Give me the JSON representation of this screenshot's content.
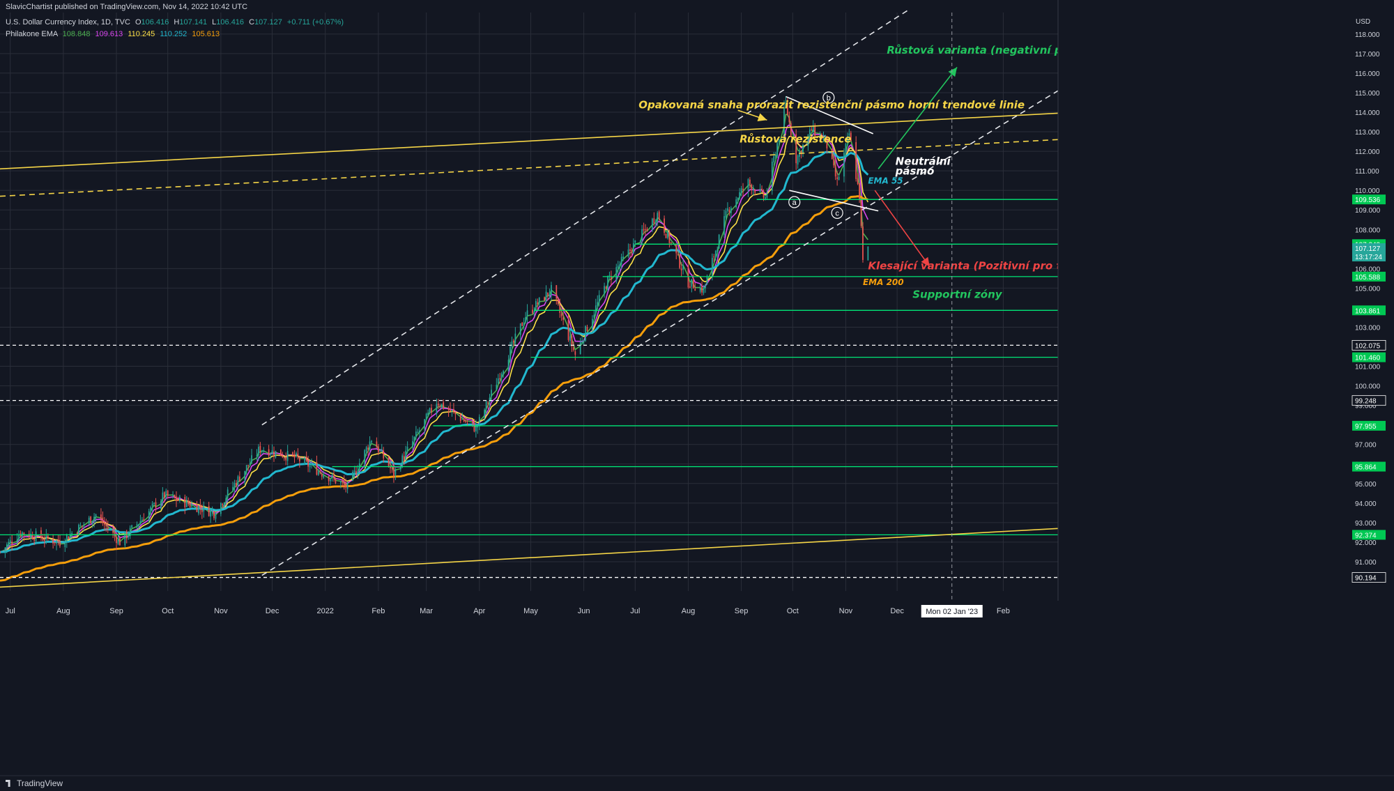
{
  "header": {
    "publisher_line": "SlavicChartist published on TradingView.com, Nov 14, 2022 10:42 UTC",
    "symbol_line": "U.S. Dollar Currency Index, 1D, TVC",
    "ohlc": {
      "open_label": "O",
      "open": "106.416",
      "high_label": "H",
      "high": "107.141",
      "low_label": "L",
      "low": "106.416",
      "close_label": "C",
      "close": "107.127",
      "change": "+0.711 (+0.67%)"
    },
    "indicator": {
      "name": "Philakone EMA",
      "values": [
        "108.848",
        "109.613",
        "110.245",
        "110.252",
        "105.613"
      ]
    }
  },
  "footer": {
    "brand": "TradingView"
  },
  "colors": {
    "background": "#131722",
    "grid": "#2a2e39",
    "text": "#d1d4dc",
    "candle_up": "#26a69a",
    "candle_down": "#ef5350",
    "green_lines": "#00e676",
    "yellow": "#f5d547",
    "annotation_green": "#22c55e",
    "annotation_red": "#ef4444",
    "ema_fast1": "#4caf50",
    "ema_fast2": "#d946ef",
    "ema_fast3": "#fde047",
    "ema55": "#22b8cf",
    "ema200": "#f59e0b",
    "white_dashed": "#e5e7eb"
  },
  "chart_data": {
    "type": "candlestick",
    "symbol": "U.S. Dollar Currency Index",
    "timeframe": "1D",
    "exchange": "TVC",
    "currency": "USD",
    "x_range": [
      "2021-06-25",
      "2023-03-05"
    ],
    "ylim": [
      89.5,
      119.1
    ],
    "grid": true,
    "x_ticks": [
      {
        "label": "Jul",
        "date": "2021-07-01"
      },
      {
        "label": "Aug",
        "date": "2021-08-01"
      },
      {
        "label": "Sep",
        "date": "2021-09-01"
      },
      {
        "label": "Oct",
        "date": "2021-10-01"
      },
      {
        "label": "Nov",
        "date": "2021-11-01"
      },
      {
        "label": "Dec",
        "date": "2021-12-01"
      },
      {
        "label": "2022",
        "date": "2022-01-01"
      },
      {
        "label": "Feb",
        "date": "2022-02-01"
      },
      {
        "label": "Mar",
        "date": "2022-03-01"
      },
      {
        "label": "Apr",
        "date": "2022-04-01"
      },
      {
        "label": "May",
        "date": "2022-05-01"
      },
      {
        "label": "Jun",
        "date": "2022-06-01"
      },
      {
        "label": "Jul",
        "date": "2022-07-01"
      },
      {
        "label": "Aug",
        "date": "2022-08-01"
      },
      {
        "label": "Sep",
        "date": "2022-09-01"
      },
      {
        "label": "Oct",
        "date": "2022-10-01"
      },
      {
        "label": "Nov",
        "date": "2022-11-01"
      },
      {
        "label": "Dec",
        "date": "2022-12-01"
      },
      {
        "label": "Feb",
        "date": "2023-02-01"
      }
    ],
    "crosshair": {
      "date": "2023-01-02",
      "label": "Mon 02 Jan '23"
    },
    "y_ticks": [
      "118.000",
      "117.000",
      "116.000",
      "115.000",
      "114.000",
      "113.000",
      "112.000",
      "111.000",
      "110.000",
      "109.000",
      "108.000",
      "106.000",
      "105.000",
      "103.000",
      "101.000",
      "100.000",
      "99.000",
      "97.000",
      "96.000",
      "95.000",
      "94.000",
      "93.000",
      "92.000",
      "91.000"
    ],
    "price_tags": [
      {
        "value": 109.536,
        "label": "109.536",
        "color": "#00c853"
      },
      {
        "value": 107.249,
        "label": "107.249",
        "color": "#00c853"
      },
      {
        "value": 106.83,
        "label": "107.127",
        "sub": "13:17:24",
        "color": "#26a69a",
        "current": true
      },
      {
        "value": 105.588,
        "label": "105.588",
        "color": "#00c853"
      },
      {
        "value": 103.861,
        "label": "103.861",
        "color": "#00c853"
      },
      {
        "value": 102.075,
        "label": "102.075",
        "color": "#131722",
        "border": "#ffffff"
      },
      {
        "value": 101.46,
        "label": "101.460",
        "color": "#00c853"
      },
      {
        "value": 99.248,
        "label": "99.248",
        "color": "#131722",
        "border": "#ffffff"
      },
      {
        "value": 97.955,
        "label": "97.955",
        "color": "#00c853"
      },
      {
        "value": 95.864,
        "label": "95.864",
        "color": "#00c853"
      },
      {
        "value": 92.374,
        "label": "92.374",
        "color": "#00c853"
      },
      {
        "value": 90.194,
        "label": "90.194",
        "color": "#131722",
        "border": "#ffffff"
      }
    ],
    "horizontal_levels": [
      {
        "value": 109.536,
        "from": "2022-09-10",
        "style": "solid",
        "color": "#00e676"
      },
      {
        "value": 107.249,
        "from": "2022-07-01",
        "style": "solid",
        "color": "#00e676"
      },
      {
        "value": 105.588,
        "from": "2022-06-12",
        "style": "solid",
        "color": "#00e676"
      },
      {
        "value": 103.861,
        "from": "2022-05-03",
        "style": "solid",
        "color": "#00e676"
      },
      {
        "value": 102.075,
        "from": "2021-06-25",
        "style": "dashed",
        "color": "#ffffff"
      },
      {
        "value": 101.46,
        "from": "2022-05-01",
        "style": "solid",
        "color": "#00e676"
      },
      {
        "value": 99.248,
        "from": "2021-06-25",
        "style": "dashed",
        "color": "#ffffff"
      },
      {
        "value": 97.955,
        "from": "2022-03-05",
        "style": "solid",
        "color": "#00e676"
      },
      {
        "value": 95.864,
        "from": "2022-01-05",
        "style": "solid",
        "color": "#00e676"
      },
      {
        "value": 92.374,
        "from": "2021-06-25",
        "style": "solid",
        "color": "#00e676"
      },
      {
        "value": 90.194,
        "from": "2021-06-25",
        "style": "dashed",
        "color": "#ffffff"
      }
    ],
    "trend_lines": [
      {
        "name": "upper-resistance",
        "color": "#f5d547",
        "dash": false,
        "p1": [
          "2021-06-25",
          111.1
        ],
        "p2": [
          "2023-03-05",
          113.95
        ]
      },
      {
        "name": "rising-resistance",
        "color": "#f5d547",
        "dash": true,
        "p1": [
          "2021-06-25",
          109.7
        ],
        "p2": [
          "2023-03-05",
          112.6
        ]
      },
      {
        "name": "lower-trendline",
        "color": "#f5d547",
        "dash": false,
        "p1": [
          "2021-06-25",
          89.7
        ],
        "p2": [
          "2023-03-05",
          92.7
        ]
      },
      {
        "name": "channel-upper",
        "color": "#e5e7eb",
        "dash": true,
        "p1": [
          "2021-11-25",
          98.0
        ],
        "p2": [
          "2022-12-07",
          119.2
        ]
      },
      {
        "name": "channel-lower",
        "color": "#e5e7eb",
        "dash": true,
        "p1": [
          "2021-11-25",
          90.3
        ],
        "p2": [
          "2023-03-05",
          115.1
        ]
      },
      {
        "name": "triangle-upper",
        "color": "#ffffff",
        "dash": false,
        "p1": [
          "2022-09-27",
          114.8
        ],
        "p2": [
          "2022-11-17",
          112.9
        ]
      },
      {
        "name": "triangle-lower",
        "color": "#ffffff",
        "dash": false,
        "p1": [
          "2022-09-29",
          110.0
        ],
        "p2": [
          "2022-11-20",
          108.95
        ]
      }
    ],
    "arrows": [
      {
        "name": "growth-arrow",
        "color": "#22c55e",
        "from": [
          "2022-11-20",
          111.1
        ],
        "to": [
          "2023-01-05",
          116.3
        ]
      },
      {
        "name": "decline-arrow",
        "color": "#ef4444",
        "from": [
          "2022-11-18",
          110.0
        ],
        "to": [
          "2022-12-20",
          106.1
        ]
      },
      {
        "name": "arrow-to-resistance",
        "color": "#f5d547",
        "from": [
          "2022-08-30",
          114.1
        ],
        "to": [
          "2022-09-16",
          113.6
        ]
      }
    ],
    "wave_labels": [
      {
        "label": "a",
        "date": "2022-10-02",
        "value": 109.4
      },
      {
        "label": "b",
        "date": "2022-10-22",
        "value": 114.75
      },
      {
        "label": "c",
        "date": "2022-10-27",
        "value": 108.85
      }
    ],
    "annotations": [
      {
        "text": "Růstová varianta (negativní pro všechny trhy)",
        "date": "2022-11-25",
        "value": 117.0,
        "color": "#22c55e"
      },
      {
        "text": "Opakovaná snaha prorazit rezistenční pásmo horní trendové linie",
        "date": "2022-07-03",
        "value": 114.2,
        "color": "#f5d547"
      },
      {
        "text": "Růstová rezistence",
        "date": "2022-08-31",
        "value": 112.45,
        "color": "#f5d547"
      },
      {
        "text": "Neutrální",
        "date": "2022-11-30",
        "value": 111.3,
        "color": "#ffffff"
      },
      {
        "text": "pásmo",
        "date": "2022-11-30",
        "value": 110.8,
        "color": "#ffffff"
      },
      {
        "text": "EMA 55",
        "date": "2022-11-14",
        "value": 110.35,
        "color": "#22b8cf"
      },
      {
        "text": "Klesající varianta (Pozitivní pro trhy",
        "date": "2022-11-14",
        "value": 105.95,
        "color": "#ef4444"
      },
      {
        "text": "EMA 200",
        "date": "2022-11-11",
        "value": 105.15,
        "color": "#f59e0b"
      },
      {
        "text": "Supportní zóny",
        "date": "2022-12-10",
        "value": 104.5,
        "color": "#22c55e"
      }
    ],
    "price_path_anchors": [
      [
        "2021-06-25",
        91.5
      ],
      [
        "2021-07-07",
        92.5
      ],
      [
        "2021-07-30",
        92.0
      ],
      [
        "2021-08-20",
        93.4
      ],
      [
        "2021-09-03",
        92.0
      ],
      [
        "2021-09-29",
        94.4
      ],
      [
        "2021-10-28",
        93.5
      ],
      [
        "2021-11-24",
        96.8
      ],
      [
        "2021-12-15",
        96.3
      ],
      [
        "2022-01-14",
        94.8
      ],
      [
        "2022-01-28",
        97.3
      ],
      [
        "2022-02-10",
        95.5
      ],
      [
        "2022-03-07",
        99.2
      ],
      [
        "2022-03-30",
        97.8
      ],
      [
        "2022-04-28",
        103.6
      ],
      [
        "2022-05-13",
        104.9
      ],
      [
        "2022-05-27",
        101.6
      ],
      [
        "2022-06-15",
        105.4
      ],
      [
        "2022-07-14",
        108.8
      ],
      [
        "2022-08-01",
        105.3
      ],
      [
        "2022-08-10",
        104.9
      ],
      [
        "2022-08-24",
        109.0
      ],
      [
        "2022-09-05",
        110.4
      ],
      [
        "2022-09-15",
        109.6
      ],
      [
        "2022-09-27",
        114.4
      ],
      [
        "2022-10-03",
        111.6
      ],
      [
        "2022-10-12",
        113.1
      ],
      [
        "2022-10-20",
        112.6
      ],
      [
        "2022-10-27",
        110.4
      ],
      [
        "2022-11-03",
        112.9
      ],
      [
        "2022-11-09",
        109.7
      ],
      [
        "2022-11-11",
        106.3
      ],
      [
        "2022-11-14",
        107.1
      ]
    ],
    "series": [
      {
        "name": "Philakone EMA",
        "value": "108.848",
        "color": "#4caf50",
        "lag": 3
      },
      {
        "name": "Philakone EMA",
        "value": "109.613",
        "color": "#d946ef",
        "lag": 6
      },
      {
        "name": "Philakone EMA",
        "value": "110.245",
        "color": "#fde047",
        "lag": 10
      },
      {
        "name": "EMA 55",
        "value": "110.252",
        "color": "#22b8cf",
        "lag": 30
      },
      {
        "name": "EMA 200",
        "value": "105.613",
        "color": "#f59e0b",
        "lag": 90
      }
    ]
  }
}
